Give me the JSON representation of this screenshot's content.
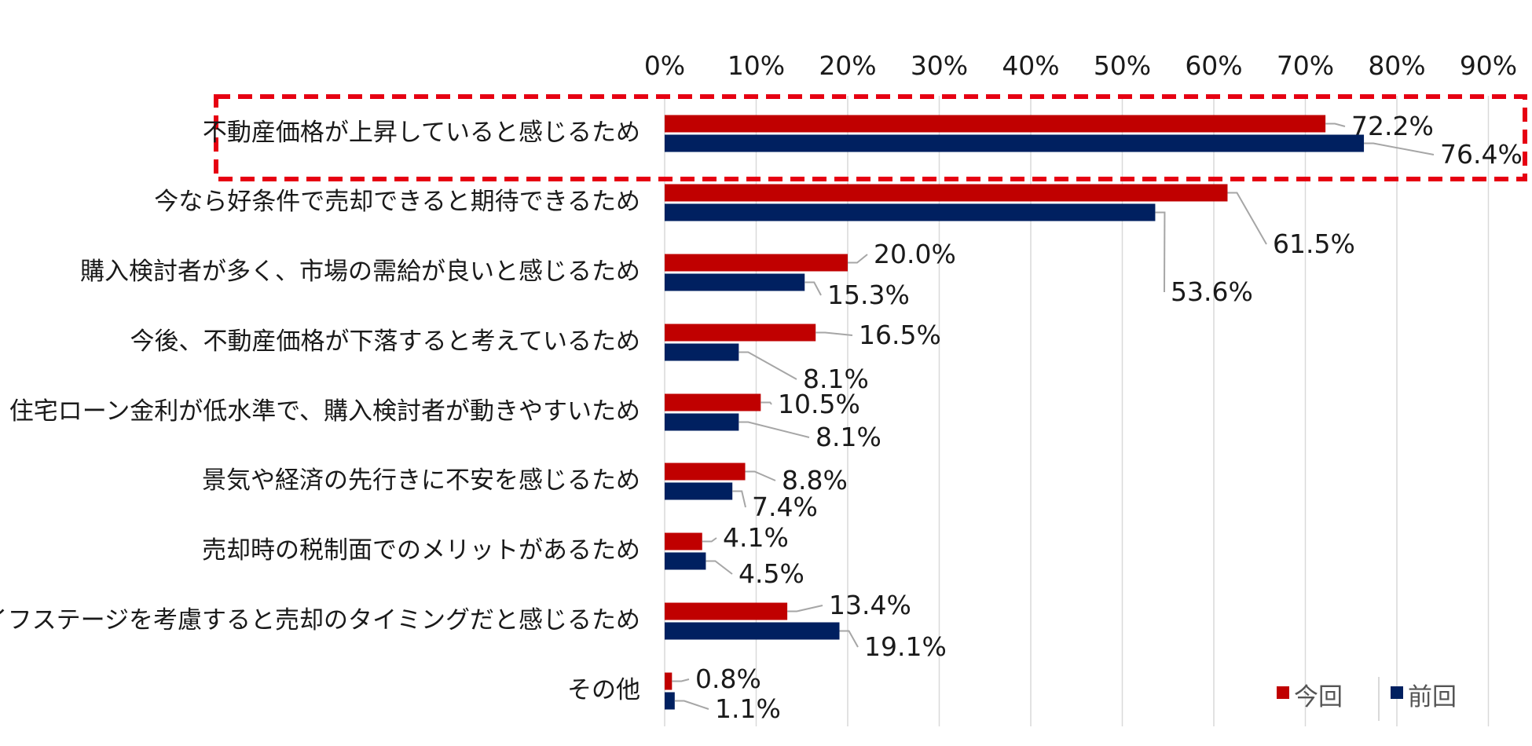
{
  "chart_data": {
    "type": "bar",
    "orientation": "horizontal",
    "categories": [
      "不動産価格が上昇していると感じるため",
      "今なら好条件で売却できると期待できるため",
      "購入検討者が多く、市場の需給が良いと感じるため",
      "今後、不動産価格が下落すると考えているため",
      "住宅ローン金利が低水準で、購入検討者が動きやすいため",
      "景気や経済の先行きに不安を感じるため",
      "売却時の税制面でのメリットがあるため",
      "自身のライフステージを考慮すると売却のタイミングだと感じるため",
      "その他"
    ],
    "series": [
      {
        "name": "今回",
        "color": "#c00000",
        "values": [
          72.2,
          61.5,
          20.0,
          16.5,
          10.5,
          8.8,
          4.1,
          13.4,
          0.8
        ],
        "labels": [
          "72.2%",
          "61.5%",
          "20.0%",
          "16.5%",
          "10.5%",
          "8.8%",
          "4.1%",
          "13.4%",
          "0.8%"
        ]
      },
      {
        "name": "前回",
        "color": "#002060",
        "values": [
          76.4,
          53.6,
          15.3,
          8.1,
          8.1,
          7.4,
          4.5,
          19.1,
          1.1
        ],
        "labels": [
          "76.4%",
          "53.6%",
          "15.3%",
          "8.1%",
          "8.1%",
          "7.4%",
          "4.5%",
          "19.1%",
          "1.1%"
        ]
      }
    ],
    "x_ticks": [
      "0%",
      "10%",
      "20%",
      "30%",
      "40%",
      "50%",
      "60%",
      "70%",
      "80%",
      "90%"
    ],
    "xlim": [
      0,
      90
    ],
    "grid": true,
    "legend": "bottom-right",
    "highlight_category": "不動産価格が上昇していると感じるため",
    "highlight_color": "#e60012"
  }
}
